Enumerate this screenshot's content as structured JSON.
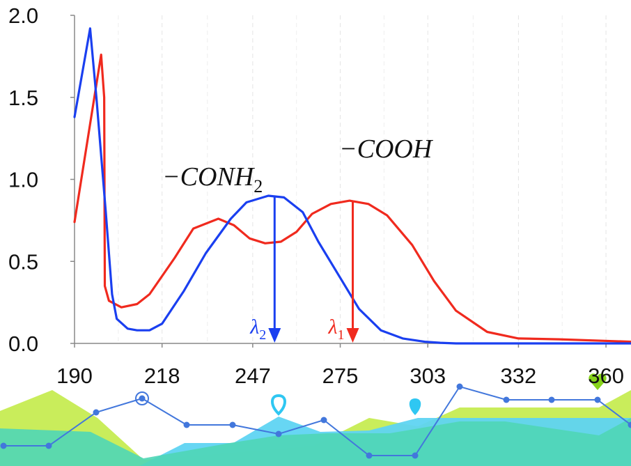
{
  "chart_data": {
    "type": "line",
    "xlabel": "",
    "ylabel": "",
    "x_ticks": [
      "190",
      "218",
      "247",
      "275",
      "303",
      "332",
      "360"
    ],
    "y_ticks": [
      "0.0",
      "0.5",
      "1.0",
      "1.5",
      "2.0"
    ],
    "xlim": [
      190,
      368
    ],
    "ylim": [
      0,
      2.0
    ],
    "grid": "vertical dashed",
    "series": [
      {
        "color": "#1a3ff0",
        "x": [
          190,
          195,
          197,
          200,
          202,
          203.5,
          207,
          210,
          214,
          218,
          225,
          232,
          240,
          245,
          252,
          257,
          263,
          268,
          275,
          281,
          288,
          295,
          302,
          307,
          312,
          318,
          325,
          340,
          368
        ],
        "y": [
          1.38,
          1.92,
          1.5,
          0.8,
          0.3,
          0.15,
          0.09,
          0.08,
          0.08,
          0.12,
          0.32,
          0.55,
          0.76,
          0.86,
          0.9,
          0.89,
          0.8,
          0.62,
          0.4,
          0.21,
          0.08,
          0.03,
          0.01,
          0.004,
          0.0,
          0.0,
          0.0,
          0.0,
          0.0
        ]
      },
      {
        "color": "#f02a1e",
        "x": [
          190,
          198.5,
          199.5,
          199.7,
          201,
          205,
          210,
          214,
          222,
          228,
          236,
          241,
          246,
          251,
          256,
          261,
          266,
          272,
          278,
          284,
          290,
          298,
          305,
          312,
          322,
          332,
          345,
          368
        ],
        "y": [
          0.74,
          1.76,
          1.5,
          0.35,
          0.26,
          0.22,
          0.24,
          0.3,
          0.52,
          0.7,
          0.76,
          0.72,
          0.64,
          0.61,
          0.62,
          0.68,
          0.79,
          0.85,
          0.87,
          0.85,
          0.78,
          0.6,
          0.38,
          0.2,
          0.07,
          0.03,
          0.025,
          0.01
        ]
      }
    ],
    "annotations": [
      {
        "text": "−CONH",
        "subscript": "2",
        "color": "#111111"
      },
      {
        "text": "−COOH",
        "color": "#111111"
      },
      {
        "text": "λ",
        "subscript": "2",
        "color": "#1a3ff0",
        "x": 254,
        "y": 0.9
      },
      {
        "text": "λ",
        "subscript": "1",
        "color": "#f02a1e",
        "x": 279,
        "y": 0.87
      }
    ]
  },
  "decoration": {
    "fill_colors": [
      "#c6ec52",
      "#5fd4f2",
      "#4fd6b6"
    ],
    "line_color": "#4277dc",
    "marker_colors": [
      "#2fc7f2",
      "#86d31a"
    ],
    "icons": [
      "target-icon",
      "map-pin-icon",
      "map-pin-filled-icon",
      "heart-icon"
    ]
  }
}
